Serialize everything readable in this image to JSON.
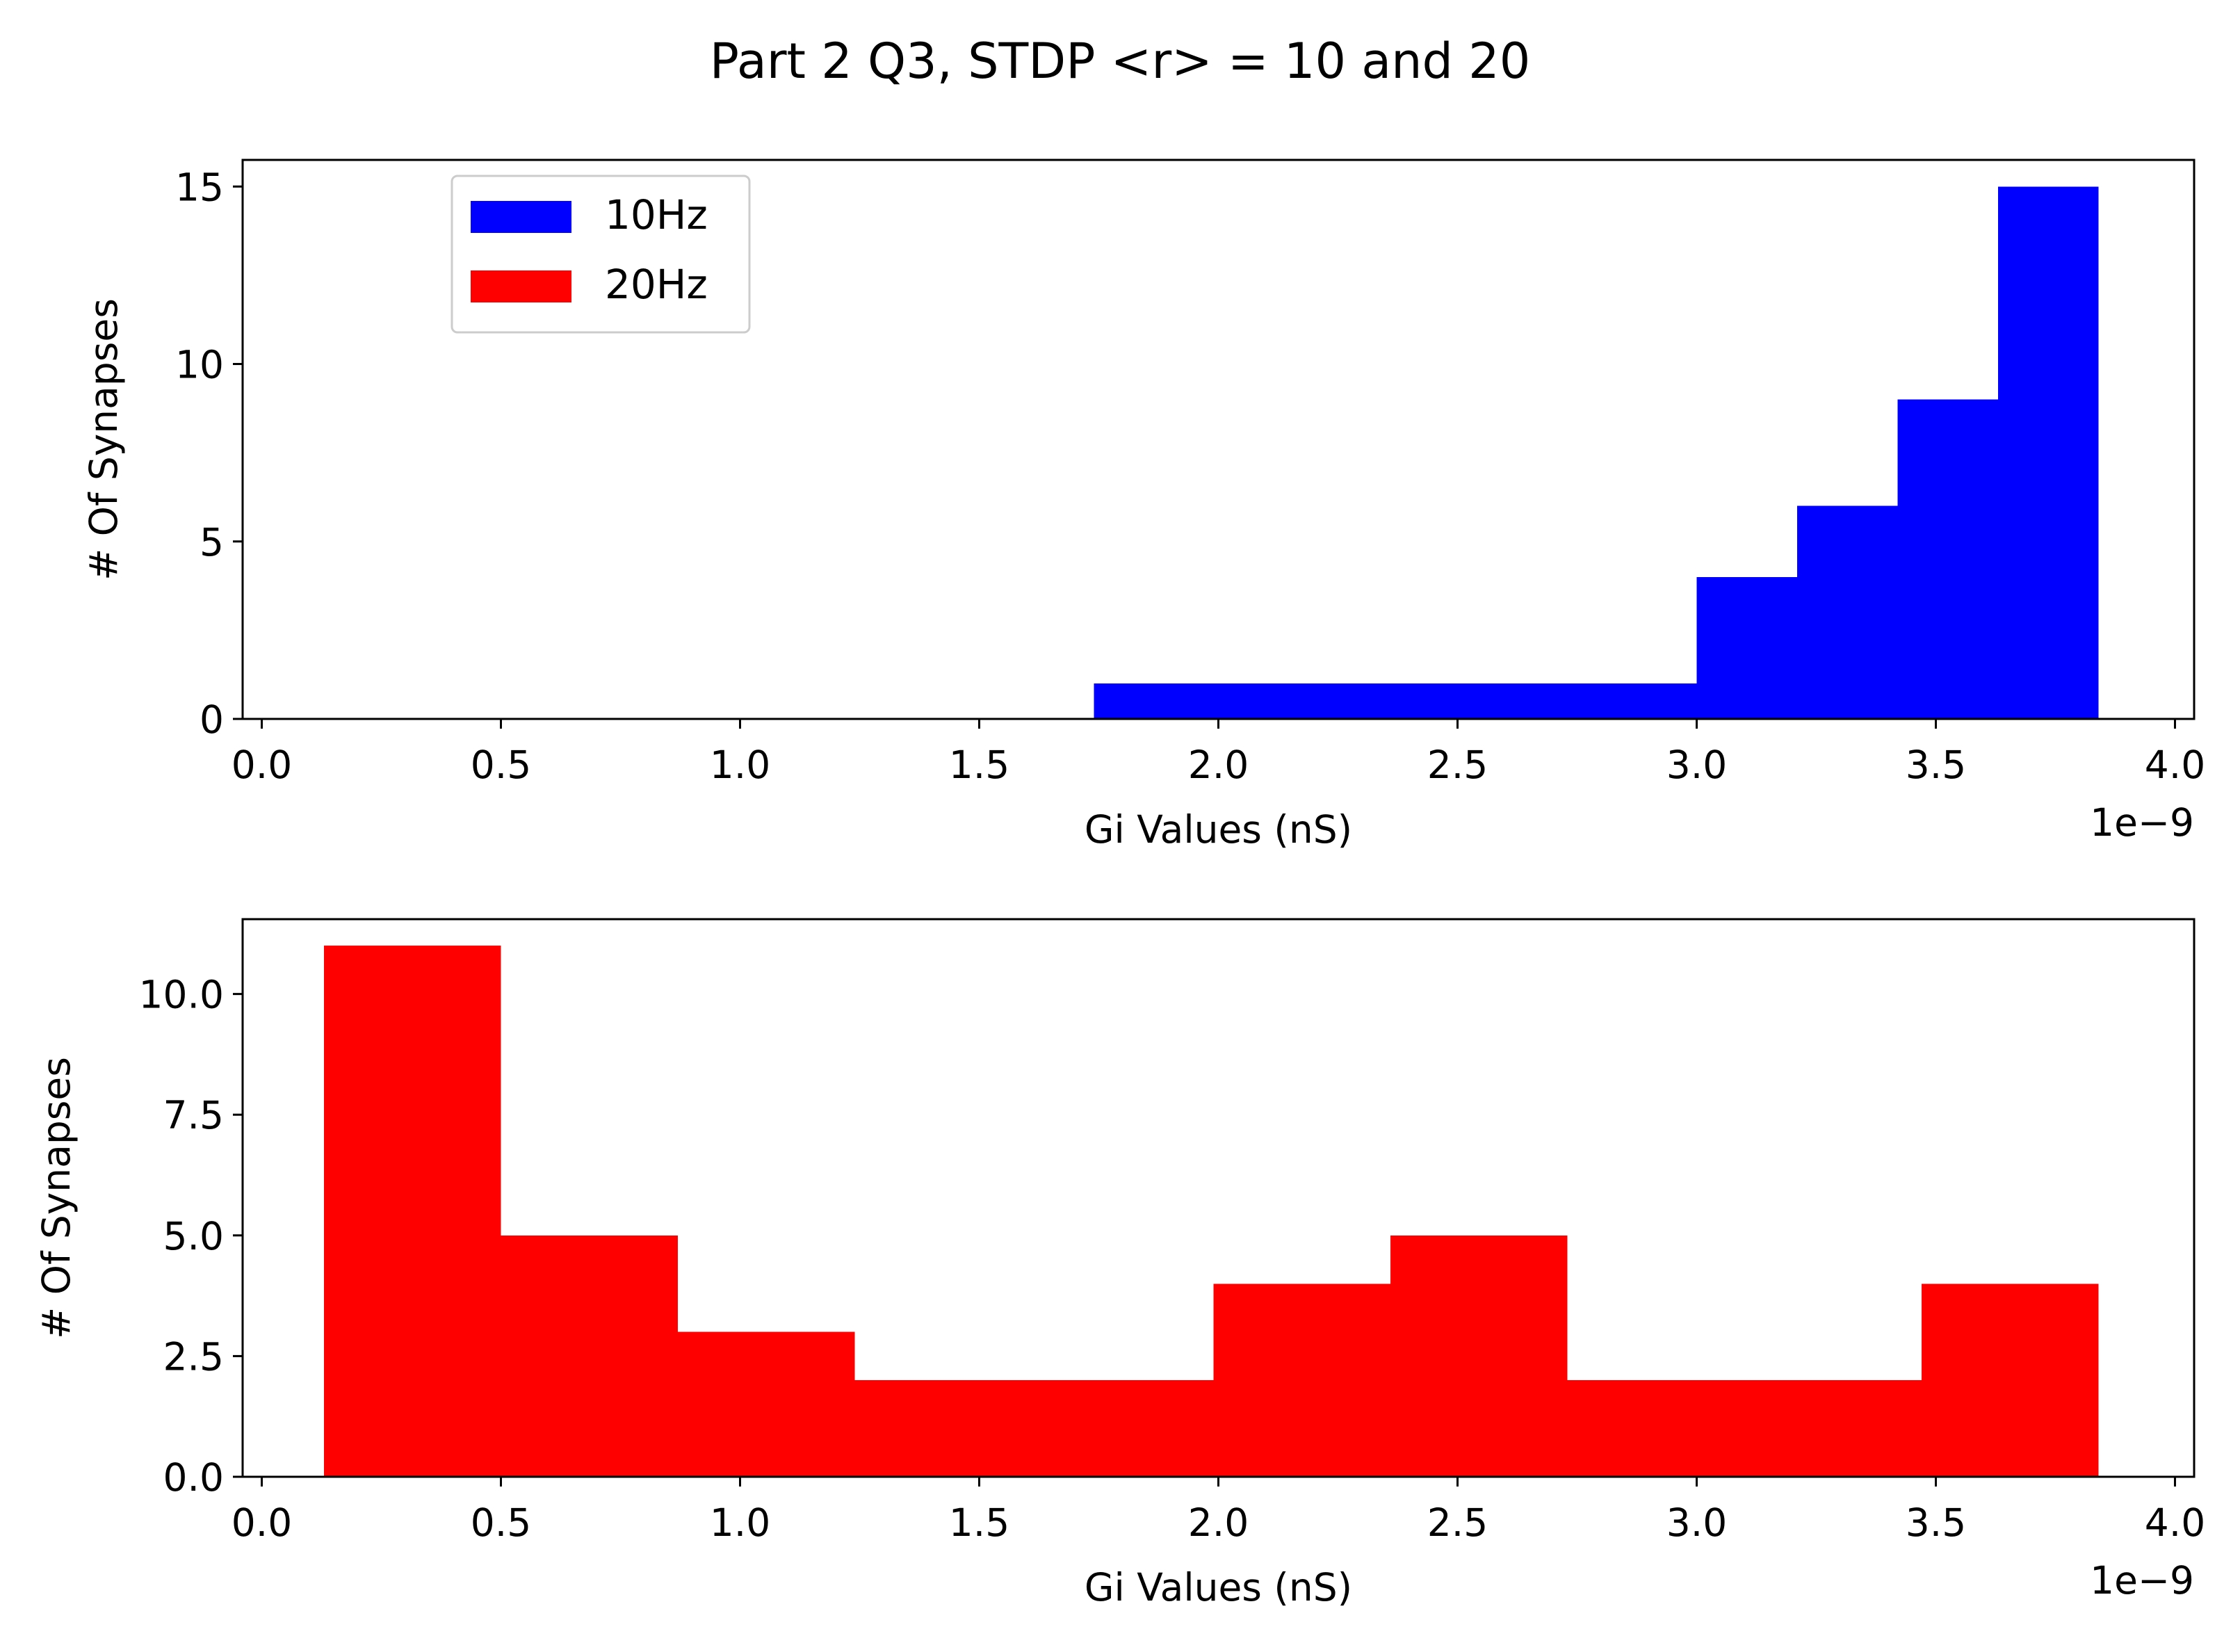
{
  "figure": {
    "title": "Part 2 Q3, STDP <r> = 10 and 20"
  },
  "chart_data": [
    {
      "type": "bar",
      "histogram": true,
      "title": "",
      "xlabel": "Gi Values (nS)",
      "ylabel": "# Of Synapses",
      "x_offset_text": "1e−9",
      "xlim": [
        -0.04,
        4.04
      ],
      "ylim": [
        0,
        15.75
      ],
      "xticks": [
        0.0,
        0.5,
        1.0,
        1.5,
        2.0,
        2.5,
        3.0,
        3.5,
        4.0
      ],
      "xtick_labels": [
        "0.0",
        "0.5",
        "1.0",
        "1.5",
        "2.0",
        "2.5",
        "3.0",
        "3.5",
        "4.0"
      ],
      "yticks": [
        0,
        5,
        10,
        15
      ],
      "ytick_labels": [
        "0",
        "5",
        "10",
        "15"
      ],
      "bin_edges": [
        1.74,
        3.0,
        3.21,
        3.42,
        3.63,
        3.84
      ],
      "series": [
        {
          "name": "10Hz",
          "color": "#0000ff",
          "values": [
            1,
            4,
            6,
            9,
            15
          ]
        }
      ],
      "legend": {
        "position": "upper-left",
        "entries": [
          {
            "label": "10Hz",
            "color": "#0000ff"
          },
          {
            "label": "20Hz",
            "color": "#ff0000"
          }
        ]
      }
    },
    {
      "type": "bar",
      "histogram": true,
      "title": "",
      "xlabel": "Gi Values (nS)",
      "ylabel": "# Of Synapses",
      "x_offset_text": "1e−9",
      "xlim": [
        -0.04,
        4.04
      ],
      "ylim": [
        0,
        11.55
      ],
      "xticks": [
        0.0,
        0.5,
        1.0,
        1.5,
        2.0,
        2.5,
        3.0,
        3.5,
        4.0
      ],
      "xtick_labels": [
        "0.0",
        "0.5",
        "1.0",
        "1.5",
        "2.0",
        "2.5",
        "3.0",
        "3.5",
        "4.0"
      ],
      "yticks": [
        0.0,
        2.5,
        5.0,
        7.5,
        10.0
      ],
      "ytick_labels": [
        "0.0",
        "2.5",
        "5.0",
        "7.5",
        "10.0"
      ],
      "bin_edges": [
        0.13,
        0.5,
        0.87,
        1.24,
        1.61,
        1.99,
        2.36,
        2.73,
        3.1,
        3.47,
        3.84
      ],
      "series": [
        {
          "name": "20Hz",
          "color": "#ff0000",
          "values": [
            11,
            5,
            3,
            2,
            2,
            4,
            5,
            2,
            2,
            4
          ]
        }
      ]
    }
  ]
}
